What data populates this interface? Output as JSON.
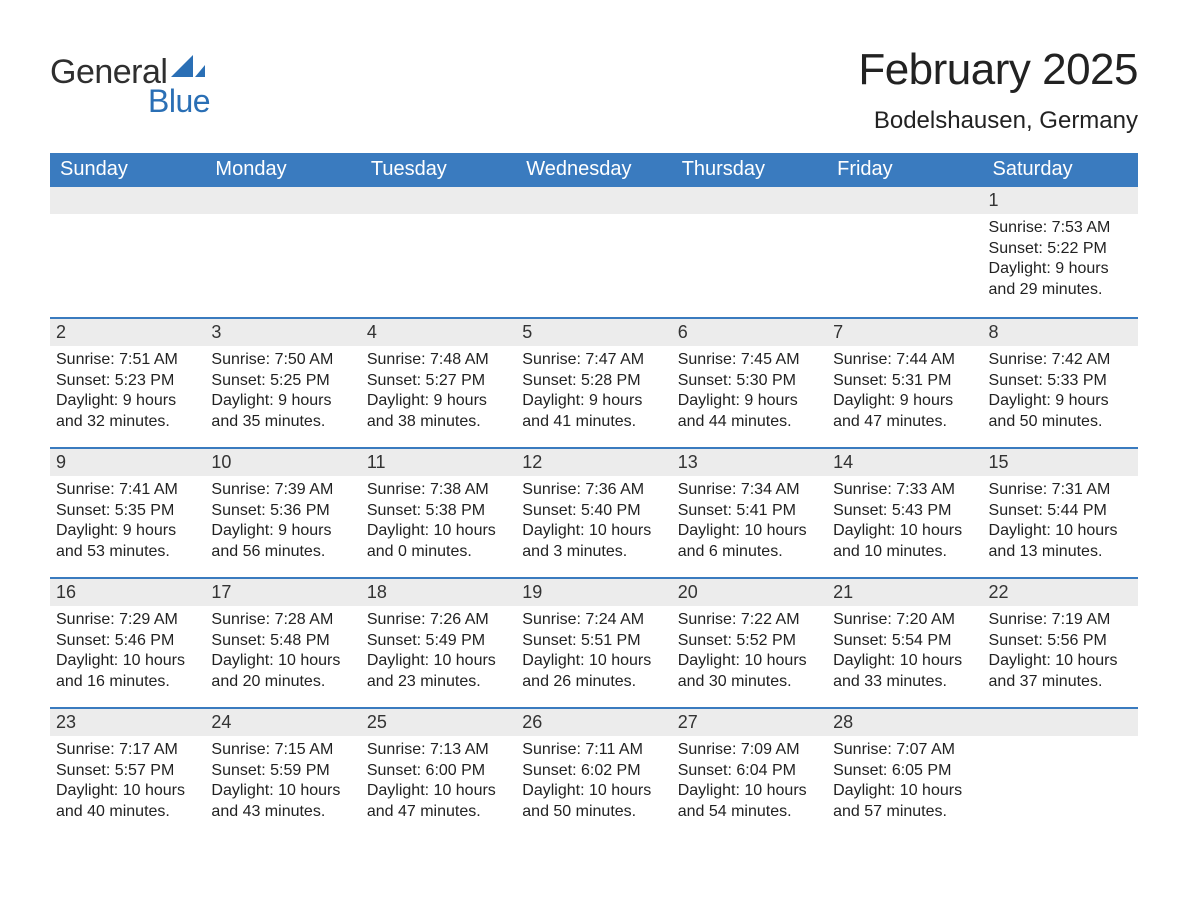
{
  "logo": {
    "word1": "General",
    "word2": "Blue",
    "text_color": "#2f2f2f",
    "accent_color": "#2a6fb5"
  },
  "header": {
    "month_title": "February 2025",
    "location": "Bodelshausen, Germany"
  },
  "colors": {
    "header_bg": "#3a7bbf",
    "header_text": "#ffffff",
    "day_bar_bg": "#ececec",
    "top_line": "#3a7bbf",
    "body_text": "#222222",
    "page_bg": "#ffffff"
  },
  "typography": {
    "month_title_fontsize": 44,
    "location_fontsize": 24,
    "weekday_fontsize": 20,
    "daynum_fontsize": 18,
    "info_fontsize": 16
  },
  "calendar": {
    "type": "table",
    "weekdays": [
      "Sunday",
      "Monday",
      "Tuesday",
      "Wednesday",
      "Thursday",
      "Friday",
      "Saturday"
    ],
    "weeks": [
      [
        {
          "day": "",
          "sunrise": "",
          "sunset": "",
          "daylight1": "",
          "daylight2": ""
        },
        {
          "day": "",
          "sunrise": "",
          "sunset": "",
          "daylight1": "",
          "daylight2": ""
        },
        {
          "day": "",
          "sunrise": "",
          "sunset": "",
          "daylight1": "",
          "daylight2": ""
        },
        {
          "day": "",
          "sunrise": "",
          "sunset": "",
          "daylight1": "",
          "daylight2": ""
        },
        {
          "day": "",
          "sunrise": "",
          "sunset": "",
          "daylight1": "",
          "daylight2": ""
        },
        {
          "day": "",
          "sunrise": "",
          "sunset": "",
          "daylight1": "",
          "daylight2": ""
        },
        {
          "day": "1",
          "sunrise": "Sunrise: 7:53 AM",
          "sunset": "Sunset: 5:22 PM",
          "daylight1": "Daylight: 9 hours",
          "daylight2": "and 29 minutes."
        }
      ],
      [
        {
          "day": "2",
          "sunrise": "Sunrise: 7:51 AM",
          "sunset": "Sunset: 5:23 PM",
          "daylight1": "Daylight: 9 hours",
          "daylight2": "and 32 minutes."
        },
        {
          "day": "3",
          "sunrise": "Sunrise: 7:50 AM",
          "sunset": "Sunset: 5:25 PM",
          "daylight1": "Daylight: 9 hours",
          "daylight2": "and 35 minutes."
        },
        {
          "day": "4",
          "sunrise": "Sunrise: 7:48 AM",
          "sunset": "Sunset: 5:27 PM",
          "daylight1": "Daylight: 9 hours",
          "daylight2": "and 38 minutes."
        },
        {
          "day": "5",
          "sunrise": "Sunrise: 7:47 AM",
          "sunset": "Sunset: 5:28 PM",
          "daylight1": "Daylight: 9 hours",
          "daylight2": "and 41 minutes."
        },
        {
          "day": "6",
          "sunrise": "Sunrise: 7:45 AM",
          "sunset": "Sunset: 5:30 PM",
          "daylight1": "Daylight: 9 hours",
          "daylight2": "and 44 minutes."
        },
        {
          "day": "7",
          "sunrise": "Sunrise: 7:44 AM",
          "sunset": "Sunset: 5:31 PM",
          "daylight1": "Daylight: 9 hours",
          "daylight2": "and 47 minutes."
        },
        {
          "day": "8",
          "sunrise": "Sunrise: 7:42 AM",
          "sunset": "Sunset: 5:33 PM",
          "daylight1": "Daylight: 9 hours",
          "daylight2": "and 50 minutes."
        }
      ],
      [
        {
          "day": "9",
          "sunrise": "Sunrise: 7:41 AM",
          "sunset": "Sunset: 5:35 PM",
          "daylight1": "Daylight: 9 hours",
          "daylight2": "and 53 minutes."
        },
        {
          "day": "10",
          "sunrise": "Sunrise: 7:39 AM",
          "sunset": "Sunset: 5:36 PM",
          "daylight1": "Daylight: 9 hours",
          "daylight2": "and 56 minutes."
        },
        {
          "day": "11",
          "sunrise": "Sunrise: 7:38 AM",
          "sunset": "Sunset: 5:38 PM",
          "daylight1": "Daylight: 10 hours",
          "daylight2": "and 0 minutes."
        },
        {
          "day": "12",
          "sunrise": "Sunrise: 7:36 AM",
          "sunset": "Sunset: 5:40 PM",
          "daylight1": "Daylight: 10 hours",
          "daylight2": "and 3 minutes."
        },
        {
          "day": "13",
          "sunrise": "Sunrise: 7:34 AM",
          "sunset": "Sunset: 5:41 PM",
          "daylight1": "Daylight: 10 hours",
          "daylight2": "and 6 minutes."
        },
        {
          "day": "14",
          "sunrise": "Sunrise: 7:33 AM",
          "sunset": "Sunset: 5:43 PM",
          "daylight1": "Daylight: 10 hours",
          "daylight2": "and 10 minutes."
        },
        {
          "day": "15",
          "sunrise": "Sunrise: 7:31 AM",
          "sunset": "Sunset: 5:44 PM",
          "daylight1": "Daylight: 10 hours",
          "daylight2": "and 13 minutes."
        }
      ],
      [
        {
          "day": "16",
          "sunrise": "Sunrise: 7:29 AM",
          "sunset": "Sunset: 5:46 PM",
          "daylight1": "Daylight: 10 hours",
          "daylight2": "and 16 minutes."
        },
        {
          "day": "17",
          "sunrise": "Sunrise: 7:28 AM",
          "sunset": "Sunset: 5:48 PM",
          "daylight1": "Daylight: 10 hours",
          "daylight2": "and 20 minutes."
        },
        {
          "day": "18",
          "sunrise": "Sunrise: 7:26 AM",
          "sunset": "Sunset: 5:49 PM",
          "daylight1": "Daylight: 10 hours",
          "daylight2": "and 23 minutes."
        },
        {
          "day": "19",
          "sunrise": "Sunrise: 7:24 AM",
          "sunset": "Sunset: 5:51 PM",
          "daylight1": "Daylight: 10 hours",
          "daylight2": "and 26 minutes."
        },
        {
          "day": "20",
          "sunrise": "Sunrise: 7:22 AM",
          "sunset": "Sunset: 5:52 PM",
          "daylight1": "Daylight: 10 hours",
          "daylight2": "and 30 minutes."
        },
        {
          "day": "21",
          "sunrise": "Sunrise: 7:20 AM",
          "sunset": "Sunset: 5:54 PM",
          "daylight1": "Daylight: 10 hours",
          "daylight2": "and 33 minutes."
        },
        {
          "day": "22",
          "sunrise": "Sunrise: 7:19 AM",
          "sunset": "Sunset: 5:56 PM",
          "daylight1": "Daylight: 10 hours",
          "daylight2": "and 37 minutes."
        }
      ],
      [
        {
          "day": "23",
          "sunrise": "Sunrise: 7:17 AM",
          "sunset": "Sunset: 5:57 PM",
          "daylight1": "Daylight: 10 hours",
          "daylight2": "and 40 minutes."
        },
        {
          "day": "24",
          "sunrise": "Sunrise: 7:15 AM",
          "sunset": "Sunset: 5:59 PM",
          "daylight1": "Daylight: 10 hours",
          "daylight2": "and 43 minutes."
        },
        {
          "day": "25",
          "sunrise": "Sunrise: 7:13 AM",
          "sunset": "Sunset: 6:00 PM",
          "daylight1": "Daylight: 10 hours",
          "daylight2": "and 47 minutes."
        },
        {
          "day": "26",
          "sunrise": "Sunrise: 7:11 AM",
          "sunset": "Sunset: 6:02 PM",
          "daylight1": "Daylight: 10 hours",
          "daylight2": "and 50 minutes."
        },
        {
          "day": "27",
          "sunrise": "Sunrise: 7:09 AM",
          "sunset": "Sunset: 6:04 PM",
          "daylight1": "Daylight: 10 hours",
          "daylight2": "and 54 minutes."
        },
        {
          "day": "28",
          "sunrise": "Sunrise: 7:07 AM",
          "sunset": "Sunset: 6:05 PM",
          "daylight1": "Daylight: 10 hours",
          "daylight2": "and 57 minutes."
        },
        {
          "day": "",
          "sunrise": "",
          "sunset": "",
          "daylight1": "",
          "daylight2": ""
        }
      ]
    ]
  }
}
